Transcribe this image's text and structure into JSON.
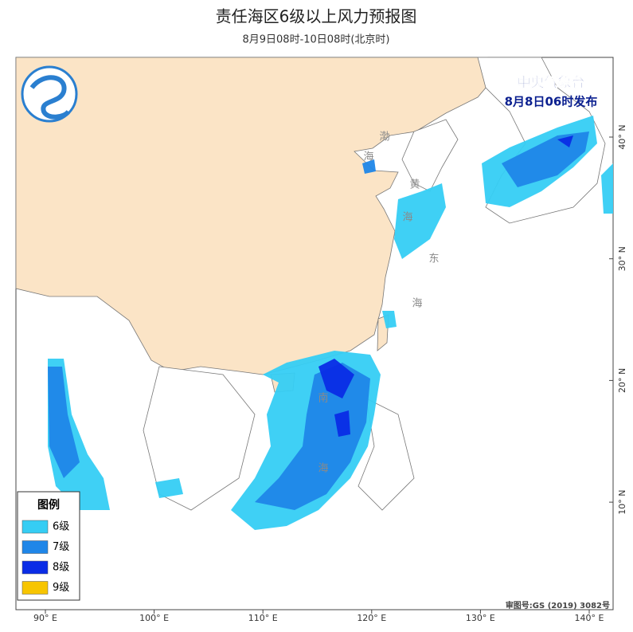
{
  "header": {
    "title": "责任海区6级以上风力预报图",
    "subtitle": "8月9日08时-10日08时(北京时)"
  },
  "issuer": {
    "agency": "中央气象台",
    "issued": "8月8日06时发布"
  },
  "map": {
    "sea_labels": [
      "渤",
      "海",
      "黄",
      "海",
      "东",
      "海",
      "南",
      "海"
    ],
    "lon_ticks": [
      {
        "value": 90,
        "label": "90° E"
      },
      {
        "value": 100,
        "label": "100° E"
      },
      {
        "value": 110,
        "label": "110° E"
      },
      {
        "value": 120,
        "label": "120° E"
      },
      {
        "value": 130,
        "label": "130° E"
      },
      {
        "value": 140,
        "label": "140° E"
      }
    ],
    "lat_ticks": [
      {
        "value": 10,
        "label": "10° N"
      },
      {
        "value": 20,
        "label": "20° N"
      },
      {
        "value": 30,
        "label": "30° N"
      },
      {
        "value": 40,
        "label": "40° N"
      }
    ]
  },
  "legend": {
    "title": "图例",
    "items": [
      {
        "label": "6级",
        "color": "#35cdf4"
      },
      {
        "label": "7级",
        "color": "#1f86e8"
      },
      {
        "label": "8级",
        "color": "#0a2ce6"
      },
      {
        "label": "9级",
        "color": "#f7c500"
      }
    ]
  },
  "footer": {
    "approval": "审图号:GS (2019) 3082号"
  }
}
